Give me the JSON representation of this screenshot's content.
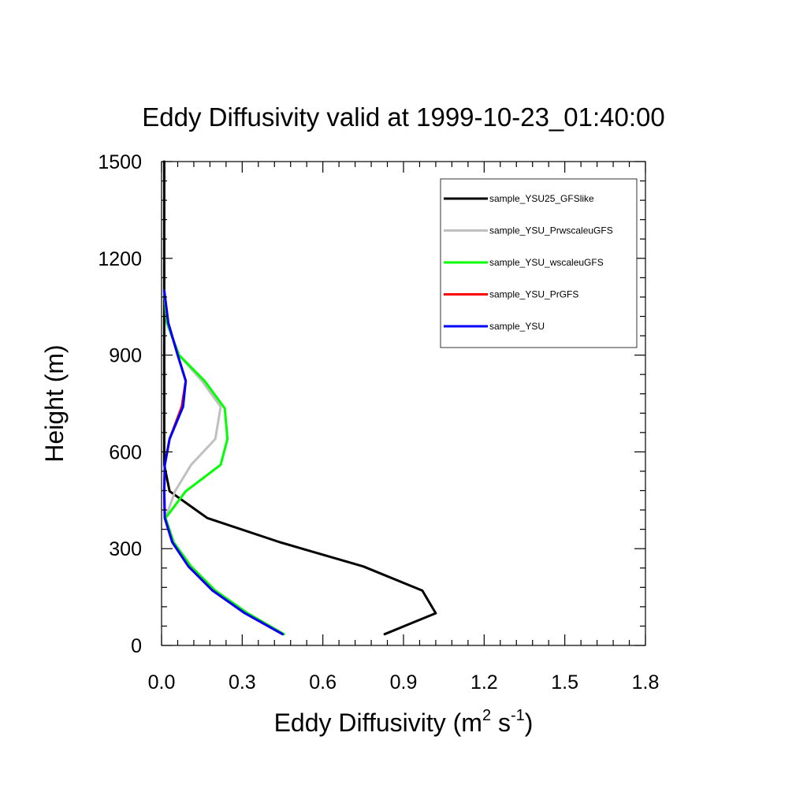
{
  "chart_data": {
    "type": "line",
    "title": "Eddy Diffusivity valid at 1999-10-23_01:40:00",
    "xlabel": {
      "base": "Eddy Diffusivity (m",
      "sup1": "2",
      "mid": " s",
      "sup2": "-1",
      "end": ")"
    },
    "ylabel": "Height (m)",
    "xlim": [
      0,
      1.8
    ],
    "ylim": [
      0,
      1500
    ],
    "xticks": [
      "0.0",
      "0.3",
      "0.6",
      "0.9",
      "1.2",
      "1.5",
      "1.8"
    ],
    "xtick_values": [
      0,
      0.3,
      0.6,
      0.9,
      1.2,
      1.5,
      1.8
    ],
    "yticks": [
      "0",
      "300",
      "600",
      "900",
      "1200",
      "1500"
    ],
    "ytick_values": [
      0,
      300,
      600,
      900,
      1200,
      1500
    ],
    "legend_position": "top-right",
    "series": [
      {
        "name": "sample_YSU25_GFSlike",
        "color": "#000000",
        "points": [
          [
            0.83,
            35
          ],
          [
            1.02,
            100
          ],
          [
            0.97,
            170
          ],
          [
            0.75,
            245
          ],
          [
            0.44,
            320
          ],
          [
            0.17,
            395
          ],
          [
            0.03,
            478
          ],
          [
            0.01,
            560
          ],
          [
            0.01,
            640
          ],
          [
            0.01,
            800
          ],
          [
            0.01,
            1000
          ],
          [
            0.01,
            1200
          ],
          [
            0.01,
            1500
          ]
        ]
      },
      {
        "name": "sample_YSU_PrwscaleuGFS",
        "color": "#c0c0c0",
        "points": [
          [
            0.455,
            35
          ],
          [
            0.32,
            100
          ],
          [
            0.2,
            170
          ],
          [
            0.11,
            245
          ],
          [
            0.045,
            320
          ],
          [
            0.015,
            395
          ],
          [
            0.05,
            478
          ],
          [
            0.11,
            560
          ],
          [
            0.2,
            640
          ],
          [
            0.22,
            740
          ],
          [
            0.15,
            820
          ],
          [
            0.065,
            900
          ],
          [
            0.02,
            1000
          ],
          [
            0.01,
            1100
          ]
        ]
      },
      {
        "name": "sample_YSU_wscaleuGFS",
        "color": "#00ff00",
        "points": [
          [
            0.455,
            35
          ],
          [
            0.32,
            100
          ],
          [
            0.2,
            170
          ],
          [
            0.11,
            245
          ],
          [
            0.045,
            320
          ],
          [
            0.015,
            395
          ],
          [
            0.09,
            478
          ],
          [
            0.22,
            560
          ],
          [
            0.245,
            640
          ],
          [
            0.235,
            735
          ],
          [
            0.16,
            820
          ],
          [
            0.065,
            900
          ],
          [
            0.02,
            1000
          ],
          [
            0.01,
            1100
          ]
        ]
      },
      {
        "name": "sample_YSU_PrGFS",
        "color": "#ff0000",
        "points": [
          [
            0.45,
            35
          ],
          [
            0.31,
            100
          ],
          [
            0.19,
            170
          ],
          [
            0.1,
            245
          ],
          [
            0.04,
            320
          ],
          [
            0.012,
            395
          ],
          [
            0.01,
            478
          ],
          [
            0.012,
            560
          ],
          [
            0.03,
            640
          ],
          [
            0.075,
            740
          ],
          [
            0.09,
            820
          ],
          [
            0.06,
            900
          ],
          [
            0.025,
            1000
          ],
          [
            0.01,
            1100
          ]
        ]
      },
      {
        "name": "sample_YSU",
        "color": "#0000ff",
        "points": [
          [
            0.45,
            35
          ],
          [
            0.31,
            100
          ],
          [
            0.19,
            170
          ],
          [
            0.1,
            245
          ],
          [
            0.04,
            320
          ],
          [
            0.012,
            395
          ],
          [
            0.01,
            478
          ],
          [
            0.012,
            560
          ],
          [
            0.03,
            640
          ],
          [
            0.08,
            740
          ],
          [
            0.09,
            820
          ],
          [
            0.06,
            900
          ],
          [
            0.025,
            1000
          ],
          [
            0.01,
            1100
          ]
        ]
      }
    ]
  }
}
